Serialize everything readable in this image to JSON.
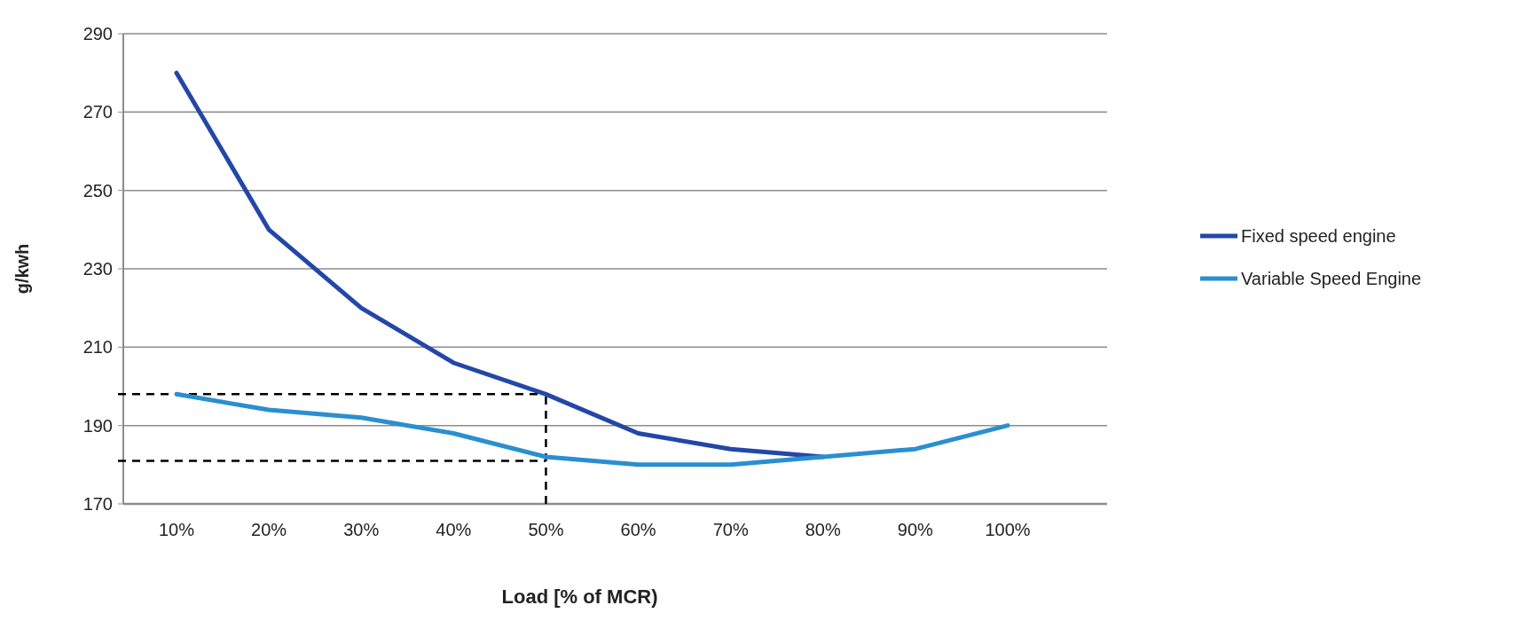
{
  "chart_data": {
    "type": "line",
    "xlabel": "Load [% of MCR)",
    "ylabel": "g/kwh",
    "categories": [
      "10%",
      "20%",
      "30%",
      "40%",
      "50%",
      "60%",
      "70%",
      "80%",
      "90%",
      "100%"
    ],
    "series": [
      {
        "name": "Fixed speed engine",
        "color": "#2347a8",
        "values": [
          280,
          240,
          220,
          206,
          198,
          188,
          184,
          182,
          null,
          null
        ]
      },
      {
        "name": "Variable Speed Engine",
        "color": "#2a8fd0",
        "values": [
          198,
          194,
          192,
          188,
          182,
          180,
          180,
          182,
          184,
          190
        ]
      }
    ],
    "ylim": [
      170,
      290
    ],
    "yticks": [
      170,
      190,
      210,
      230,
      250,
      270,
      290
    ],
    "grid": "y",
    "legend": "right",
    "marker": "none",
    "line_style": "solid",
    "ref_lines": [
      {
        "axis": "y",
        "value": 198,
        "color": "#000000",
        "line_style": "dashed"
      },
      {
        "axis": "y",
        "value": 181,
        "color": "#000000",
        "line_style": "dashed"
      },
      {
        "axis": "x",
        "value": "50%",
        "color": "#000000",
        "line_style": "dashed"
      }
    ]
  }
}
